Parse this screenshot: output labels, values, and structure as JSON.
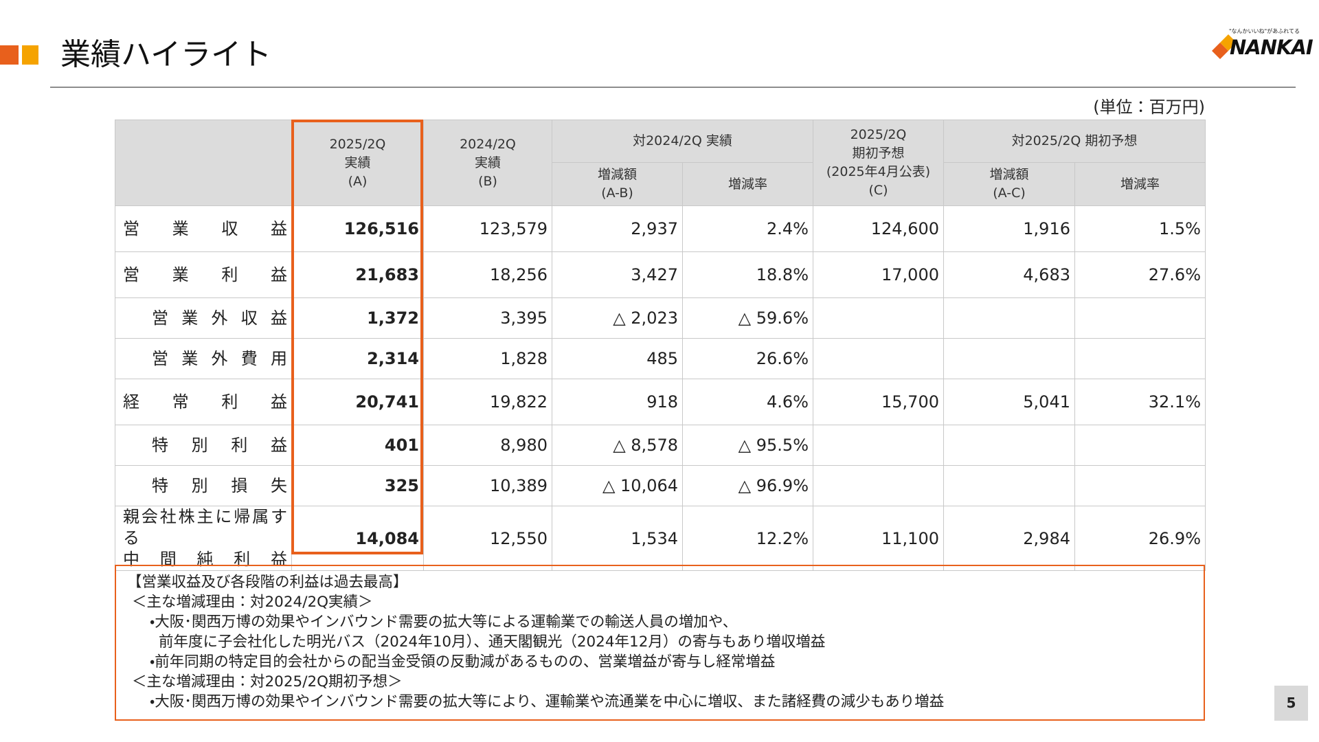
{
  "header": {
    "title": "業績ハイライト",
    "logo_tagline": "\"なんかいいね\"があふれてる",
    "logo": "NANKAI"
  },
  "unit": "(単位：百万円)",
  "table": {
    "head": {
      "a": [
        "2025/2Q",
        "実績",
        "(A)"
      ],
      "b": [
        "2024/2Q",
        "実績",
        "(B)"
      ],
      "vs_prior": "対2024/2Q 実績",
      "c": [
        "2025/2Q",
        "期初予想",
        "(2025年4月公表)",
        "(C)"
      ],
      "vs_plan": "対2025/2Q 期初予想",
      "diff_ab": [
        "増減額",
        "(A-B)"
      ],
      "rate_ab": "増減率",
      "diff_ac": [
        "増減額",
        "(A-C)"
      ],
      "rate_ac": "増減率"
    },
    "rows": [
      {
        "label": [
          "営業収益"
        ],
        "cells": [
          "126,516",
          "123,579",
          "2,937",
          "2.4%",
          "124,600",
          "1,916",
          "1.5%"
        ]
      },
      {
        "label": [
          "営業利益"
        ],
        "cells": [
          "21,683",
          "18,256",
          "3,427",
          "18.8%",
          "17,000",
          "4,683",
          "27.6%"
        ]
      },
      {
        "label": [
          "営業外収益"
        ],
        "cells": [
          "1,372",
          "3,395",
          "△ 2,023",
          "△ 59.6%",
          null,
          null,
          null
        ]
      },
      {
        "label": [
          "営業外費用"
        ],
        "cells": [
          "2,314",
          "1,828",
          "485",
          "26.6%",
          null,
          null,
          null
        ]
      },
      {
        "label": [
          "経常利益"
        ],
        "cells": [
          "20,741",
          "19,822",
          "918",
          "4.6%",
          "15,700",
          "5,041",
          "32.1%"
        ]
      },
      {
        "label": [
          "特別利益"
        ],
        "cells": [
          "401",
          "8,980",
          "△ 8,578",
          "△ 95.5%",
          null,
          null,
          null
        ]
      },
      {
        "label": [
          "特別損失"
        ],
        "cells": [
          "325",
          "10,389",
          "△ 10,064",
          "△ 96.9%",
          null,
          null,
          null
        ]
      },
      {
        "label": [
          "親会社株主に帰属する",
          "中間純利益"
        ],
        "cells": [
          "14,084",
          "12,550",
          "1,534",
          "12.2%",
          "11,100",
          "2,984",
          "26.9%"
        ]
      }
    ]
  },
  "notes": [
    "【営業収益及び各段階の利益は過去最高】",
    "＜主な増減理由：対2024/2Q実績＞",
    "・大阪･関西万博の効果やインバウンド需要の拡大等による運輸業での輸送人員の増加や、",
    "前年度に子会社化した明光バス（2024年10月）、通天閣観光（2024年12月）の寄与もあり増収増益",
    "・前年同期の特定目的会社からの配当金受領の反動減があるものの、営業増益が寄与し経常増益",
    "＜主な増減理由：対2025/2Q期初予想＞",
    "・大阪･関西万博の効果やインバウンド需要の拡大等により、運輸業や流通業を中心に増収、また諸経費の減少もあり増益"
  ],
  "page_number": "5"
}
